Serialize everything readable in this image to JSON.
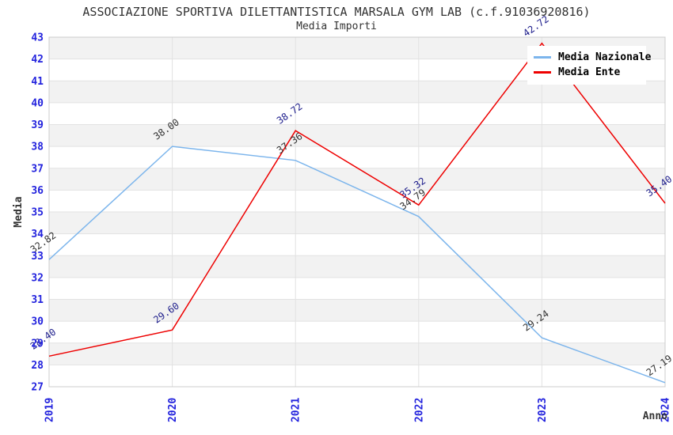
{
  "header": {
    "title": "ASSOCIAZIONE SPORTIVA DILETTANTISTICA MARSALA GYM LAB (c.f.91036920816)",
    "subtitle": "Media Importi"
  },
  "chart_data": {
    "type": "line",
    "title": "ASSOCIAZIONE SPORTIVA DILETTANTISTICA MARSALA GYM LAB (c.f.91036920816)",
    "subtitle": "Media Importi",
    "xlabel": "Anno",
    "ylabel": "Media",
    "categories": [
      "2019",
      "2020",
      "2021",
      "2022",
      "2023",
      "2024"
    ],
    "series": [
      {
        "name": "Media Nazionale",
        "color": "#7cb5ec",
        "label_color": "#333333",
        "values": [
          32.82,
          38.0,
          37.36,
          34.79,
          29.24,
          27.19
        ],
        "labels": [
          "32.82",
          "38.00",
          "37.36",
          "34.79",
          "29.24",
          "27.19"
        ]
      },
      {
        "name": "Media Ente",
        "color": "#ee0000",
        "label_color": "#1e1e8c",
        "values": [
          28.4,
          29.6,
          38.72,
          35.32,
          42.72,
          35.4
        ],
        "labels": [
          "28.40",
          "29.60",
          "38.72",
          "35.32",
          "42.72",
          "35.40"
        ]
      }
    ],
    "ylim": [
      27,
      43
    ],
    "ytick_step": 1,
    "yticks": [
      27,
      28,
      29,
      30,
      31,
      32,
      33,
      34,
      35,
      36,
      37,
      38,
      39,
      40,
      41,
      42,
      43
    ],
    "grid": true,
    "legend_position": "top-right",
    "colors": {
      "tick_label": "#2222dd",
      "axis_title": "#333333",
      "band_fill": "#f2f2f2",
      "grid_line": "#e2e2e2",
      "plot_border": "#cccccc",
      "title_text": "#333333"
    }
  }
}
